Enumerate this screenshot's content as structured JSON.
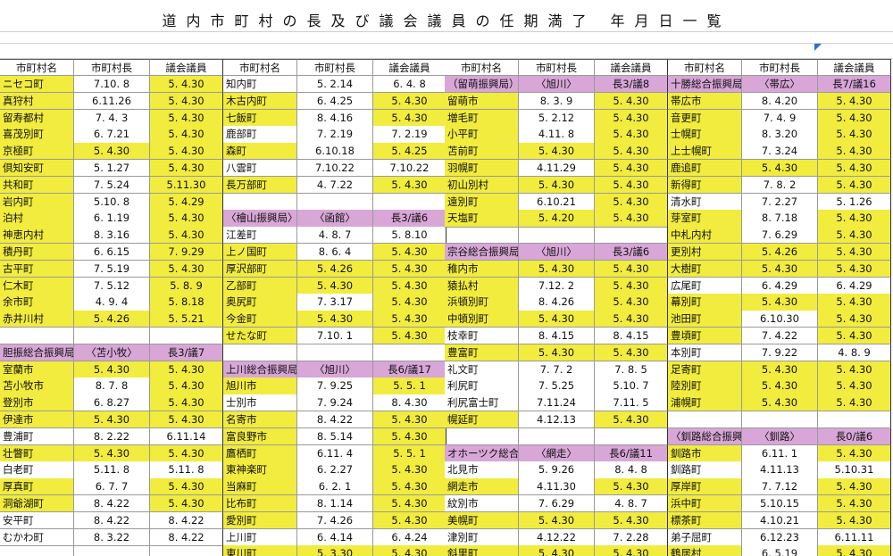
{
  "title": "道内市町村の長及び議会議員の任期満了 年月日一覧",
  "headers": [
    "市町村名",
    "市町村長",
    "議会議員"
  ],
  "colors": {
    "y": "#f1ec3d",
    "p": "#d8a6d7",
    "n": "#ffffff"
  },
  "groups": [
    {
      "rows": [
        {
          "cells": [
            "ニセコ町",
            "7.10. 8",
            "5. 4.30"
          ],
          "fill": "yny"
        },
        {
          "cells": [
            "真狩村",
            "6.11.26",
            "5. 4.30"
          ],
          "fill": "yny"
        },
        {
          "cells": [
            "留寿都村",
            "7. 4. 3",
            "5. 4.30"
          ],
          "fill": "yny"
        },
        {
          "cells": [
            "喜茂別町",
            "6. 7.21",
            "5. 4.30"
          ],
          "fill": "yny"
        },
        {
          "cells": [
            "京極町",
            "5. 4.30",
            "5. 4.30"
          ],
          "fill": "yyy"
        },
        {
          "cells": [
            "倶知安町",
            "5. 1.27",
            "5. 4.30"
          ],
          "fill": "yny"
        },
        {
          "cells": [
            "共和町",
            "7. 5.24",
            "5.11.30"
          ],
          "fill": "yny"
        },
        {
          "cells": [
            "岩内町",
            "5.10. 8",
            "5. 4.29"
          ],
          "fill": "yny"
        },
        {
          "cells": [
            "泊村",
            "6. 1.19",
            "5. 4.30"
          ],
          "fill": "yny"
        },
        {
          "cells": [
            "神恵内村",
            "8. 3.16",
            "5. 4.30"
          ],
          "fill": "yny"
        },
        {
          "cells": [
            "積丹町",
            "6. 6.15",
            "7. 9.29"
          ],
          "fill": "yny"
        },
        {
          "cells": [
            "古平町",
            "7. 5.19",
            "5. 4.30"
          ],
          "fill": "yny"
        },
        {
          "cells": [
            "仁木町",
            "7. 5.12",
            "5. 8. 9"
          ],
          "fill": "yny"
        },
        {
          "cells": [
            "余市町",
            "4. 9. 4",
            "5. 8.18"
          ],
          "fill": "yny"
        },
        {
          "cells": [
            "赤井川村",
            "5. 4.26",
            "5. 5.21"
          ],
          "fill": "yyy"
        },
        null,
        {
          "cells": [
            "胆振総合振興局",
            "〈苫小牧〉",
            "長3/議7"
          ],
          "fill": "ppp"
        },
        {
          "cells": [
            "室蘭市",
            "5. 4.30",
            "5. 4.30"
          ],
          "fill": "yyy"
        },
        {
          "cells": [
            "苫小牧市",
            "8. 7. 8",
            "5. 4.30"
          ],
          "fill": "yny"
        },
        {
          "cells": [
            "登別市",
            "6. 8.27",
            "5. 4.30"
          ],
          "fill": "yny"
        },
        {
          "cells": [
            "伊達市",
            "5. 4.30",
            "5. 4.30"
          ],
          "fill": "yyy"
        },
        {
          "cells": [
            "豊浦町",
            "8. 2.22",
            "6.11.14"
          ],
          "fill": "nnn"
        },
        {
          "cells": [
            "壮瞥町",
            "5. 4.30",
            "5. 4.30"
          ],
          "fill": "yyy"
        },
        {
          "cells": [
            "白老町",
            "5.11. 8",
            "5.11. 8"
          ],
          "fill": "nnn"
        },
        {
          "cells": [
            "厚真町",
            "6. 7. 7",
            "5. 4.30"
          ],
          "fill": "yny"
        },
        {
          "cells": [
            "洞爺湖町",
            "8. 4.22",
            "5. 4.30"
          ],
          "fill": "yny"
        },
        {
          "cells": [
            "安平町",
            "8. 4.22",
            "8. 4.22"
          ],
          "fill": "nnn"
        },
        {
          "cells": [
            "むかわ町",
            "8. 3.22",
            "8. 4.22"
          ],
          "fill": "nnn"
        },
        null
      ]
    },
    {
      "rows": [
        {
          "cells": [
            "知内町",
            "5. 2.14",
            "6. 4. 8"
          ],
          "fill": "nnn"
        },
        {
          "cells": [
            "木古内町",
            "6. 4.25",
            "5. 4.30"
          ],
          "fill": "yny"
        },
        {
          "cells": [
            "七飯町",
            "8. 4.16",
            "5. 4.30"
          ],
          "fill": "yny"
        },
        {
          "cells": [
            "鹿部町",
            "7. 2.19",
            "7. 2.19"
          ],
          "fill": "nnn"
        },
        {
          "cells": [
            "森町",
            "6.10.18",
            "5. 4.25"
          ],
          "fill": "yny"
        },
        {
          "cells": [
            "八雲町",
            "7.10.22",
            "7.10.22"
          ],
          "fill": "nnn"
        },
        {
          "cells": [
            "長万部町",
            "4. 7.22",
            "5. 4.30"
          ],
          "fill": "yny"
        },
        null,
        {
          "cells": [
            "〈檜山振興局〉",
            "〈函館〉",
            "長3/議6"
          ],
          "fill": "ppp"
        },
        {
          "cells": [
            "江差町",
            "4. 8. 7",
            "5. 8.10"
          ],
          "fill": "nnn"
        },
        {
          "cells": [
            "上ノ国町",
            "8. 6. 4",
            "5. 4.30"
          ],
          "fill": "yny"
        },
        {
          "cells": [
            "厚沢部町",
            "5. 4.26",
            "5. 4.30"
          ],
          "fill": "yyy"
        },
        {
          "cells": [
            "乙部町",
            "5. 4.30",
            "5. 4.30"
          ],
          "fill": "yyy"
        },
        {
          "cells": [
            "奥尻町",
            "7. 3.17",
            "5. 4.30"
          ],
          "fill": "yny"
        },
        {
          "cells": [
            "今金町",
            "5. 4.30",
            "5. 4.30"
          ],
          "fill": "yyy"
        },
        {
          "cells": [
            "せたな町",
            "7.10. 1",
            "5. 4.30"
          ],
          "fill": "yny"
        },
        null,
        {
          "cells": [
            "上川総合振興局",
            "〈旭川〉",
            "長6/議17"
          ],
          "fill": "ppp"
        },
        {
          "cells": [
            "旭川市",
            "7. 9.25",
            "5. 5. 1"
          ],
          "fill": "yny"
        },
        {
          "cells": [
            "士別市",
            "7. 9.24",
            "8. 4.30"
          ],
          "fill": "nnn"
        },
        {
          "cells": [
            "名寄市",
            "8. 4.22",
            "5. 4.30"
          ],
          "fill": "yny"
        },
        {
          "cells": [
            "富良野市",
            "8. 5.14",
            "5. 4.30"
          ],
          "fill": "yny"
        },
        {
          "cells": [
            "鷹栖町",
            "6.11. 4",
            "5. 5. 1"
          ],
          "fill": "yny"
        },
        {
          "cells": [
            "東神楽町",
            "6. 2.27",
            "5. 4.30"
          ],
          "fill": "yny"
        },
        {
          "cells": [
            "当麻町",
            "6. 2. 1",
            "5. 4.30"
          ],
          "fill": "yny"
        },
        {
          "cells": [
            "比布町",
            "8. 1.14",
            "5. 4.30"
          ],
          "fill": "yny"
        },
        {
          "cells": [
            "愛別町",
            "7. 4.26",
            "5. 4.30"
          ],
          "fill": "yny"
        },
        {
          "cells": [
            "上川町",
            "6. 4.14",
            "6. 4.24"
          ],
          "fill": "nnn"
        },
        {
          "cells": [
            "東川町",
            "5. 3.30",
            "5. 4.30"
          ],
          "fill": "yyy"
        }
      ]
    },
    {
      "rows": [
        {
          "cells": [
            "（留萌振興局）",
            "〈旭川〉",
            "長3/議8"
          ],
          "fill": "ppp"
        },
        {
          "cells": [
            "留萌市",
            "8. 3. 9",
            "5. 4.30"
          ],
          "fill": "yny"
        },
        {
          "cells": [
            "増毛町",
            "5. 2.12",
            "5. 4.30"
          ],
          "fill": "yny"
        },
        {
          "cells": [
            "小平町",
            "4.11. 8",
            "5. 4.30"
          ],
          "fill": "yny"
        },
        {
          "cells": [
            "苫前町",
            "5. 4.30",
            "5. 4.30"
          ],
          "fill": "yyy"
        },
        {
          "cells": [
            "羽幌町",
            "4.11.29",
            "5. 4.30"
          ],
          "fill": "yny"
        },
        {
          "cells": [
            "初山別村",
            "5. 4.30",
            "5. 4.30"
          ],
          "fill": "yyy"
        },
        {
          "cells": [
            "遠別町",
            "6.10.21",
            "5. 4.30"
          ],
          "fill": "yny"
        },
        {
          "cells": [
            "天塩町",
            "5. 4.20",
            "5. 4.30"
          ],
          "fill": "yyy"
        },
        null,
        {
          "cells": [
            "宗谷総合振興局",
            "〈旭川〉",
            "長3/議6"
          ],
          "fill": "ppp"
        },
        {
          "cells": [
            "稚内市",
            "5. 4.30",
            "5. 4.30"
          ],
          "fill": "yyy"
        },
        {
          "cells": [
            "猿払村",
            "7.12. 2",
            "5. 4.30"
          ],
          "fill": "yny"
        },
        {
          "cells": [
            "浜頓別町",
            "8. 4.26",
            "5. 4.30"
          ],
          "fill": "yny"
        },
        {
          "cells": [
            "中頓別町",
            "5. 4.30",
            "5. 4.30"
          ],
          "fill": "yyy"
        },
        {
          "cells": [
            "枝幸町",
            "8. 4.15",
            "8. 4.15"
          ],
          "fill": "nnn"
        },
        {
          "cells": [
            "豊富町",
            "5. 4.30",
            "5. 4.30"
          ],
          "fill": "yyy"
        },
        {
          "cells": [
            "礼文町",
            "7. 7. 2",
            "7. 8. 5"
          ],
          "fill": "nnn"
        },
        {
          "cells": [
            "利尻町",
            "7. 5.25",
            "5.10. 7"
          ],
          "fill": "nnn"
        },
        {
          "cells": [
            "利尻富士町",
            "7.11.24",
            "7.11. 5"
          ],
          "fill": "nnn"
        },
        {
          "cells": [
            "幌延町",
            "4.12.13",
            "5. 4.30"
          ],
          "fill": "yny"
        },
        null,
        {
          "cells": [
            "オホーツク総合振興局",
            "〈網走〉",
            "長6/議11"
          ],
          "fill": "ppp"
        },
        {
          "cells": [
            "北見市",
            "5. 9.26",
            "8. 4. 8"
          ],
          "fill": "nnn"
        },
        {
          "cells": [
            "網走市",
            "4.11.30",
            "5. 4.30"
          ],
          "fill": "yny"
        },
        {
          "cells": [
            "紋別市",
            "7. 6.29",
            "4. 8. 7"
          ],
          "fill": "nnn"
        },
        {
          "cells": [
            "美幌町",
            "5. 4.30",
            "5. 4.30"
          ],
          "fill": "yyy"
        },
        {
          "cells": [
            "津別町",
            "4.12.22",
            "7. 2.28"
          ],
          "fill": "nnn"
        },
        {
          "cells": [
            "斜里町",
            "5. 4.30",
            "5. 4.30"
          ],
          "fill": "yyy"
        }
      ]
    },
    {
      "rows": [
        {
          "cells": [
            "十勝総合振興局",
            "〈帯広〉",
            "長7/議16"
          ],
          "fill": "ppp"
        },
        {
          "cells": [
            "帯広市",
            "8. 4.20",
            "5. 4.30"
          ],
          "fill": "yny"
        },
        {
          "cells": [
            "音更町",
            "7. 4. 9",
            "5. 4.30"
          ],
          "fill": "yny"
        },
        {
          "cells": [
            "士幌町",
            "8. 3.20",
            "5. 4.30"
          ],
          "fill": "yny"
        },
        {
          "cells": [
            "上士幌町",
            "7. 3.24",
            "5. 4.30"
          ],
          "fill": "yny"
        },
        {
          "cells": [
            "鹿追町",
            "5. 4.30",
            "5. 4.30"
          ],
          "fill": "yyy"
        },
        {
          "cells": [
            "新得町",
            "7. 8. 2",
            "5. 4.30"
          ],
          "fill": "yny"
        },
        {
          "cells": [
            "清水町",
            "7. 2.27",
            "5. 1.26"
          ],
          "fill": "nnn"
        },
        {
          "cells": [
            "芽室町",
            "8. 7.18",
            "5. 4.30"
          ],
          "fill": "yny"
        },
        {
          "cells": [
            "中札内村",
            "7. 6.29",
            "5. 4.30"
          ],
          "fill": "yny"
        },
        {
          "cells": [
            "更別村",
            "5. 4.26",
            "5. 4.30"
          ],
          "fill": "yyy"
        },
        {
          "cells": [
            "大樹町",
            "5. 4.30",
            "5. 4.30"
          ],
          "fill": "yyy"
        },
        {
          "cells": [
            "広尾町",
            "6. 4.29",
            "6. 4.29"
          ],
          "fill": "nnn"
        },
        {
          "cells": [
            "幕別町",
            "5. 4.30",
            "5. 4.30"
          ],
          "fill": "yyy"
        },
        {
          "cells": [
            "池田町",
            "6.10.30",
            "5. 4.30"
          ],
          "fill": "yny"
        },
        {
          "cells": [
            "豊頃町",
            "7. 4.22",
            "5. 4.30"
          ],
          "fill": "yny"
        },
        {
          "cells": [
            "本別町",
            "7. 9.22",
            "4. 8. 9"
          ],
          "fill": "nnn"
        },
        {
          "cells": [
            "足寄町",
            "5. 4.30",
            "5. 4.30"
          ],
          "fill": "yyy"
        },
        {
          "cells": [
            "陸別町",
            "5. 4.30",
            "5. 4.30"
          ],
          "fill": "yyy"
        },
        {
          "cells": [
            "浦幌町",
            "5. 4.30",
            "5. 4.30"
          ],
          "fill": "yyy"
        },
        null,
        {
          "cells": [
            "〈釧路総合振興局",
            "〈釧路〉",
            "長0/議6"
          ],
          "fill": "ppp"
        },
        {
          "cells": [
            "釧路市",
            "6.11. 1",
            "5. 4.30"
          ],
          "fill": "yny"
        },
        {
          "cells": [
            "釧路町",
            "4.11.13",
            "5.10.31"
          ],
          "fill": "nnn"
        },
        {
          "cells": [
            "厚岸町",
            "7. 7.12",
            "5. 4.30"
          ],
          "fill": "yny"
        },
        {
          "cells": [
            "浜中町",
            "5.10.15",
            "5. 4.30"
          ],
          "fill": "yny"
        },
        {
          "cells": [
            "標茶町",
            "4.10.21",
            "5. 4.30"
          ],
          "fill": "yny"
        },
        {
          "cells": [
            "弟子屈町",
            "6.12.23",
            "6.11.11"
          ],
          "fill": "nnn"
        },
        {
          "cells": [
            "鶴居村",
            "6. 5.19",
            "5. 4.30"
          ],
          "fill": "yny"
        }
      ]
    }
  ]
}
